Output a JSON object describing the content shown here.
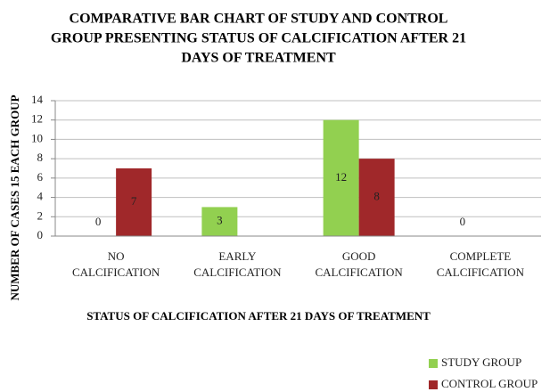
{
  "chart_data": {
    "type": "bar",
    "title": [
      "COMPARATIVE BAR CHART OF STUDY AND CONTROL",
      "GROUP  PRESENTING STATUS OF CALCIFICATION AFTER 21",
      "DAYS  OF TREATMENT"
    ],
    "x_label": "STATUS OF CALCIFICATION AFTER 21 DAYS  OF TREATMENT",
    "y_label": "NUMBER OF CASES 15 EACH GROUP",
    "categories": [
      "NO CALCIFICATION",
      "EARLY CALCIFICATION",
      "GOOD CALCIFICATION",
      "COMPLETE CALCIFICATION"
    ],
    "series": [
      {
        "name": "STUDY GROUP",
        "color": "#92d050",
        "values": [
          0,
          3,
          12,
          0
        ]
      },
      {
        "name": "CONTROL GROUP",
        "color": "#a0282a",
        "values": [
          7,
          null,
          8,
          null
        ]
      }
    ],
    "ylim": [
      0,
      14
    ],
    "yticks": [
      0,
      2,
      4,
      6,
      8,
      10,
      12,
      14
    ],
    "grid": true,
    "legend": "bottom-right"
  }
}
